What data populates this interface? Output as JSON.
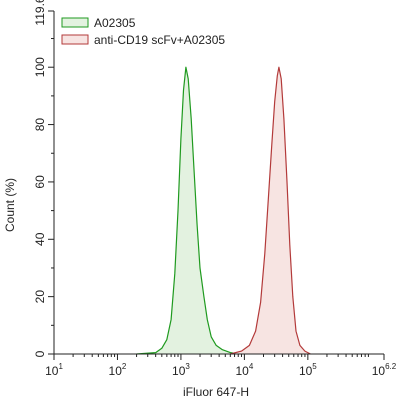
{
  "colors": {
    "series_1_line": "#1f9a1f",
    "series_1_fill": "#e3f2e0",
    "series_2_line": "#b33a3a",
    "series_2_fill": "#f7e4e2",
    "axis": "#222222"
  },
  "chart_data": {
    "type": "area",
    "xlabel": "iFluor 647-H",
    "ylabel": "Count (%)",
    "x_scale": "log",
    "xlim": [
      10,
      1584893
    ],
    "ylim": [
      0,
      119.6
    ],
    "y_ticks": [
      0,
      20,
      40,
      60,
      80,
      100,
      119.6
    ],
    "y_tick_labels": [
      "0",
      "20",
      "40",
      "60",
      "80",
      "100",
      "119.6"
    ],
    "x_ticks": [
      {
        "value": 10,
        "base": "10",
        "exp": "1"
      },
      {
        "value": 100,
        "base": "10",
        "exp": "2"
      },
      {
        "value": 1000,
        "base": "10",
        "exp": "3"
      },
      {
        "value": 10000,
        "base": "10",
        "exp": "4"
      },
      {
        "value": 100000,
        "base": "10",
        "exp": "5"
      },
      {
        "value": 1584893,
        "base": "10",
        "exp": "6.2"
      }
    ],
    "grid": false,
    "legend_position": "top-left",
    "series": [
      {
        "name": "A02305",
        "points": [
          [
            200,
            0
          ],
          [
            400,
            0.5
          ],
          [
            500,
            2
          ],
          [
            600,
            5
          ],
          [
            700,
            12
          ],
          [
            800,
            28
          ],
          [
            900,
            50
          ],
          [
            1000,
            75
          ],
          [
            1100,
            92
          ],
          [
            1200,
            100
          ],
          [
            1300,
            96
          ],
          [
            1450,
            82
          ],
          [
            1600,
            65
          ],
          [
            1800,
            45
          ],
          [
            2000,
            30
          ],
          [
            2300,
            20
          ],
          [
            2600,
            12
          ],
          [
            3000,
            6
          ],
          [
            3600,
            3
          ],
          [
            4500,
            1.5
          ],
          [
            6000,
            0.5
          ],
          [
            8000,
            0
          ]
        ]
      },
      {
        "name": "anti-CD19 scFv+A02305",
        "points": [
          [
            6000,
            0
          ],
          [
            9000,
            1
          ],
          [
            12000,
            3
          ],
          [
            15000,
            8
          ],
          [
            18000,
            18
          ],
          [
            21000,
            35
          ],
          [
            24000,
            55
          ],
          [
            27000,
            73
          ],
          [
            30000,
            88
          ],
          [
            33000,
            97
          ],
          [
            35000,
            100
          ],
          [
            38000,
            96
          ],
          [
            42000,
            82
          ],
          [
            47000,
            60
          ],
          [
            52000,
            38
          ],
          [
            58000,
            20
          ],
          [
            65000,
            8
          ],
          [
            75000,
            3
          ],
          [
            90000,
            1
          ],
          [
            110000,
            0
          ]
        ]
      }
    ]
  }
}
